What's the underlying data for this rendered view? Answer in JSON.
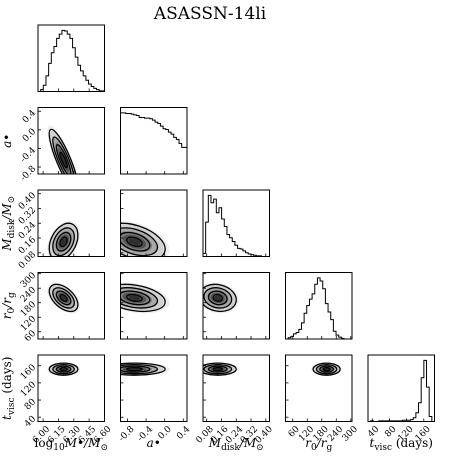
{
  "chart_data": {
    "type": "corner",
    "title": "ASASSN-14li",
    "parameters": [
      {
        "key": "logM",
        "label_prefix": "log",
        "label_sub": "10",
        "label_main": "M",
        "label_mid": "•",
        "label_suffix": "/M",
        "label_suffix_sub": "⊙",
        "range": [
          5.95,
          6.6
        ],
        "ticks": [
          6.0,
          6.15,
          6.3,
          6.45,
          6.6
        ],
        "tick_labels": [
          "6.00",
          "6.15",
          "6.30",
          "6.45",
          "6.60"
        ],
        "histogram": [
          0,
          3,
          10,
          25,
          45,
          62,
          72,
          85,
          92,
          98,
          97,
          92,
          85,
          70,
          55,
          42,
          33,
          25,
          18,
          12,
          8,
          5,
          3,
          1,
          1
        ]
      },
      {
        "key": "spin",
        "label_main": "a",
        "label_mid": "•",
        "range": [
          -0.95,
          0.48
        ],
        "ticks": [
          -0.8,
          -0.4,
          0.0,
          0.4
        ],
        "tick_labels": [
          "-0.8",
          "-0.4",
          "0.0",
          "0.4"
        ],
        "histogram": [
          92,
          92,
          91,
          91,
          90,
          89,
          88,
          85,
          85,
          84,
          84,
          83,
          81,
          78,
          76,
          72,
          68,
          67,
          63,
          60,
          55,
          52,
          46,
          40,
          40
        ]
      },
      {
        "key": "mdisk",
        "label_main": "M",
        "label_sub": "disk",
        "label_suffix": "/M",
        "label_suffix_sub": "⊙",
        "range": [
          0.06,
          0.42
        ],
        "ticks": [
          0.08,
          0.16,
          0.24,
          0.32,
          0.4
        ],
        "tick_labels": [
          "0.08",
          "0.16",
          "0.24",
          "0.32",
          "0.40"
        ],
        "histogram": [
          5,
          55,
          98,
          86,
          92,
          70,
          78,
          60,
          48,
          35,
          30,
          24,
          18,
          13,
          12,
          9,
          6,
          4,
          3,
          2,
          1,
          1,
          0,
          0,
          0
        ]
      },
      {
        "key": "r0",
        "label_main": "r",
        "label_sub": "0",
        "label_suffix": "/r",
        "label_suffix_sub": "g",
        "range": [
          30,
          305
        ],
        "ticks": [
          60,
          120,
          180,
          240,
          300
        ],
        "tick_labels": [
          "60",
          "120",
          "180",
          "240",
          "300"
        ],
        "histogram": [
          0,
          2,
          4,
          8,
          10,
          15,
          25,
          40,
          52,
          62,
          70,
          85,
          95,
          90,
          78,
          55,
          42,
          30,
          12,
          6,
          3,
          1,
          0,
          0,
          0
        ]
      },
      {
        "key": "tvisc",
        "label_main": "t",
        "label_sub": "visc",
        "label_suffix": " (days)",
        "range": [
          30,
          185
        ],
        "ticks": [
          40,
          80,
          120,
          160
        ],
        "tick_labels": [
          "40",
          "80",
          "120",
          "160"
        ],
        "histogram": [
          0,
          1,
          0,
          0,
          1,
          1,
          1,
          1,
          1,
          1,
          1,
          1,
          1,
          2,
          2,
          2,
          3,
          6,
          14,
          30,
          70,
          98,
          55,
          8,
          0
        ]
      }
    ],
    "correlations": {
      "1-0": -0.85,
      "2-0": 0.35,
      "2-1": -0.4,
      "3-0": -0.5,
      "3-1": -0.3,
      "3-2": -0.15,
      "4-0": 0.0,
      "4-1": 0.0,
      "4-2": 0.0,
      "4-3": 0.0
    },
    "modes": {
      "logM": 6.2,
      "spin": -0.65,
      "mdisk": 0.14,
      "r0": 200,
      "tvisc": 152
    },
    "spreads": {
      "logM": 0.07,
      "spin": 0.33,
      "mdisk": 0.05,
      "r0": 28,
      "tvisc": 7
    },
    "contour_levels": [
      0.5,
      1.0,
      1.5,
      2.0
    ],
    "grid": false
  }
}
